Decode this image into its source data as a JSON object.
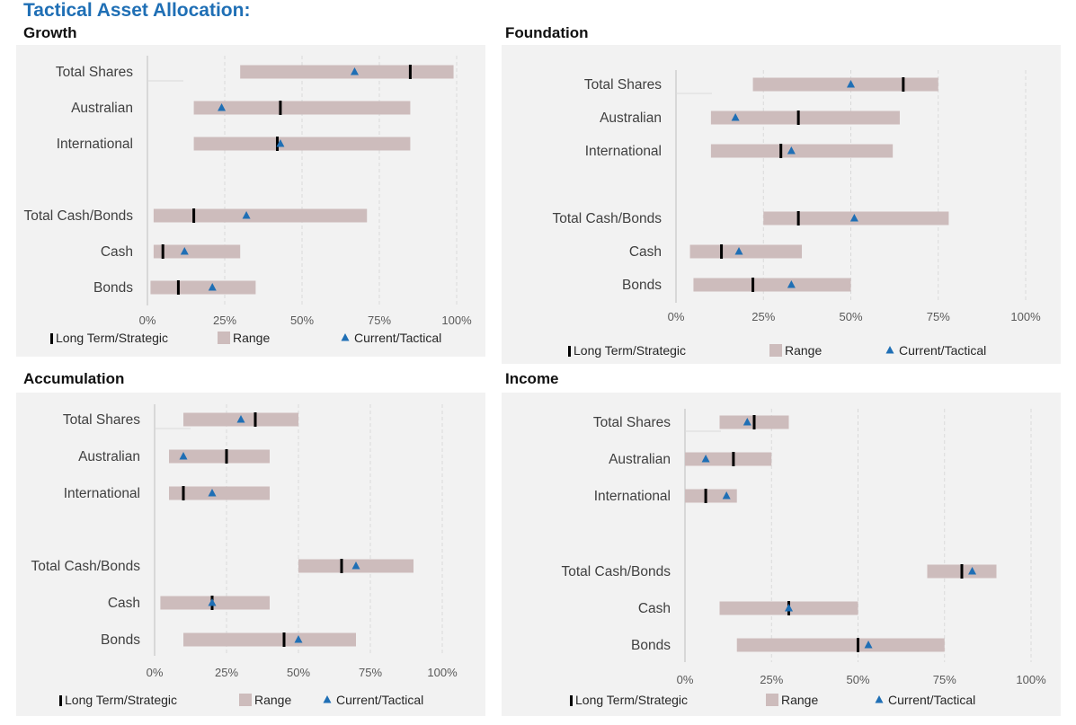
{
  "title": "Tactical Asset Allocation:",
  "legend": {
    "strategic": "Long Term/Strategic",
    "range": "Range",
    "tactical": "Current/Tactical"
  },
  "colors": {
    "range": "#cdbcbc",
    "strategic": "#000000",
    "tactical": "#1f6fb5",
    "panel": "#f2f2f2",
    "title": "#1f6fb5"
  },
  "chart_data": [
    {
      "type": "bar",
      "title": "Growth",
      "xlim": [
        0,
        100
      ],
      "xticks": [
        "0%",
        "25%",
        "50%",
        "75%",
        "100%"
      ],
      "categories": [
        "Total Shares",
        "Australian",
        "International",
        "Total Cash/Bonds",
        "Cash",
        "Bonds"
      ],
      "series": [
        {
          "name": "Range",
          "values": [
            [
              30,
              99
            ],
            [
              15,
              85
            ],
            [
              15,
              85
            ],
            [
              2,
              71
            ],
            [
              2,
              30
            ],
            [
              1,
              35
            ]
          ]
        },
        {
          "name": "Long Term/Strategic",
          "values": [
            85,
            43,
            42,
            15,
            5,
            10
          ]
        },
        {
          "name": "Current/Tactical",
          "values": [
            67,
            24,
            43,
            32,
            12,
            21
          ]
        }
      ]
    },
    {
      "type": "bar",
      "title": "Foundation",
      "xlim": [
        0,
        100
      ],
      "xticks": [
        "0%",
        "25%",
        "50%",
        "75%",
        "100%"
      ],
      "categories": [
        "Total Shares",
        "Australian",
        "International",
        "Total Cash/Bonds",
        "Cash",
        "Bonds"
      ],
      "series": [
        {
          "name": "Range",
          "values": [
            [
              22,
              75
            ],
            [
              10,
              64
            ],
            [
              10,
              62
            ],
            [
              25,
              78
            ],
            [
              4,
              36
            ],
            [
              5,
              50
            ]
          ]
        },
        {
          "name": "Long Term/Strategic",
          "values": [
            65,
            35,
            30,
            35,
            13,
            22
          ]
        },
        {
          "name": "Current/Tactical",
          "values": [
            50,
            17,
            33,
            51,
            18,
            33
          ]
        }
      ]
    },
    {
      "type": "bar",
      "title": "Accumulation",
      "xlim": [
        0,
        100
      ],
      "xticks": [
        "0%",
        "25%",
        "50%",
        "75%",
        "100%"
      ],
      "categories": [
        "Total Shares",
        "Australian",
        "International",
        "Total Cash/Bonds",
        "Cash",
        "Bonds"
      ],
      "series": [
        {
          "name": "Range",
          "values": [
            [
              10,
              50
            ],
            [
              5,
              40
            ],
            [
              5,
              40
            ],
            [
              50,
              90
            ],
            [
              2,
              40
            ],
            [
              10,
              70
            ]
          ]
        },
        {
          "name": "Long Term/Strategic",
          "values": [
            35,
            25,
            10,
            65,
            20,
            45
          ]
        },
        {
          "name": "Current/Tactical",
          "values": [
            30,
            10,
            20,
            70,
            20,
            50
          ]
        }
      ]
    },
    {
      "type": "bar",
      "title": "Income",
      "xlim": [
        0,
        100
      ],
      "xticks": [
        "0%",
        "25%",
        "50%",
        "75%",
        "100%"
      ],
      "categories": [
        "Total Shares",
        "Australian",
        "International",
        "Total Cash/Bonds",
        "Cash",
        "Bonds"
      ],
      "series": [
        {
          "name": "Range",
          "values": [
            [
              10,
              30
            ],
            [
              0,
              25
            ],
            [
              0,
              15
            ],
            [
              70,
              90
            ],
            [
              10,
              50
            ],
            [
              15,
              75
            ]
          ]
        },
        {
          "name": "Long Term/Strategic",
          "values": [
            20,
            14,
            6,
            80,
            30,
            50
          ]
        },
        {
          "name": "Current/Tactical",
          "values": [
            18,
            6,
            12,
            83,
            30,
            53
          ]
        }
      ]
    }
  ]
}
